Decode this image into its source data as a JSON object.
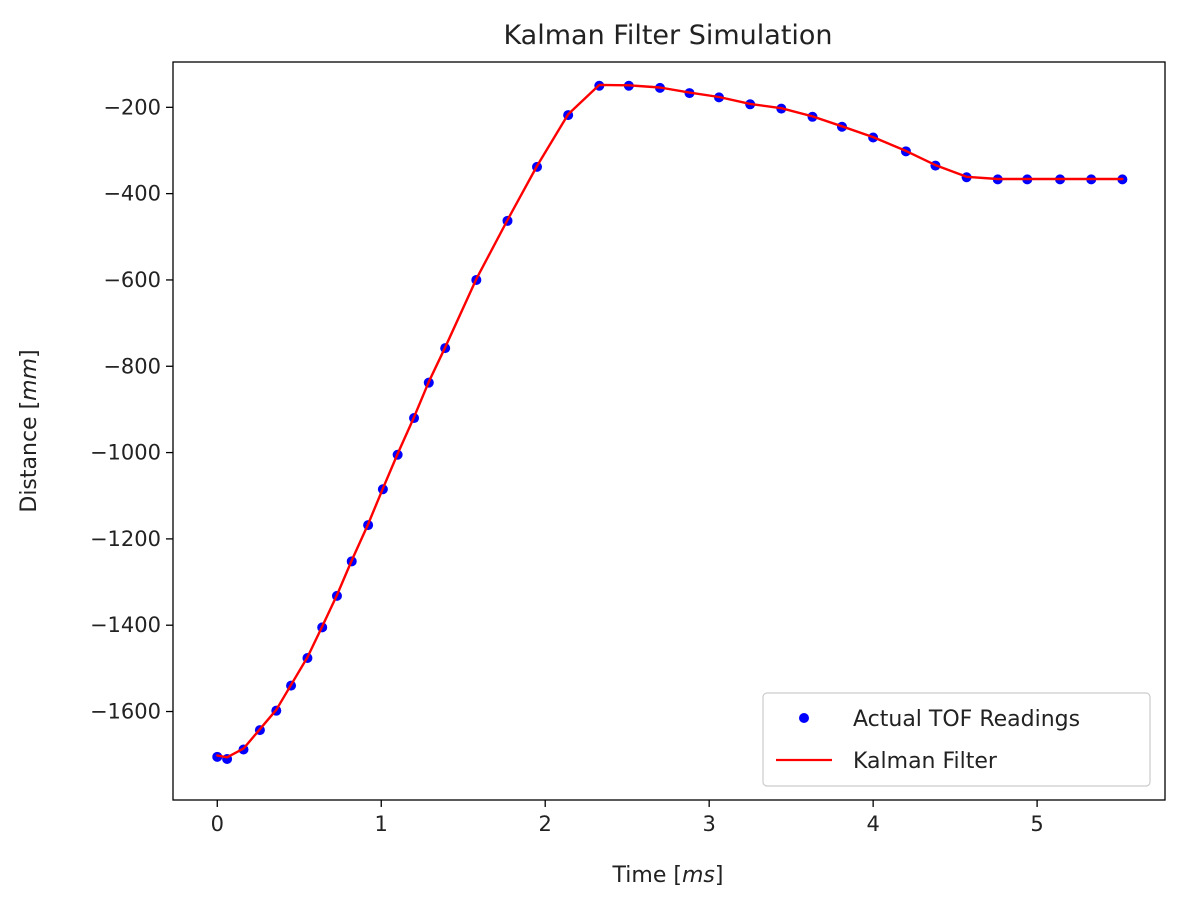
{
  "chart_data": {
    "type": "line",
    "title": "Kalman Filter Simulation",
    "xlabel_prefix": "Time [",
    "xlabel_unit": "ms",
    "xlabel_suffix": "]",
    "ylabel_prefix": "Distance [",
    "ylabel_unit": "mm",
    "ylabel_suffix": "]",
    "xlim": [
      -0.27,
      5.78
    ],
    "ylim": [
      -1805,
      -95
    ],
    "xticks": [
      0,
      1,
      2,
      3,
      4,
      5
    ],
    "yticks": [
      -1600,
      -1400,
      -1200,
      -1000,
      -800,
      -600,
      -400,
      -200
    ],
    "xtick_labels": [
      "0",
      "1",
      "2",
      "3",
      "4",
      "5"
    ],
    "ytick_labels": [
      "−1600",
      "−1400",
      "−1200",
      "−1000",
      "−800",
      "−600",
      "−400",
      "−200"
    ],
    "grid": false,
    "legend_position": "lower-right",
    "series": [
      {
        "name": "Actual TOF Readings",
        "kind": "scatter",
        "color": "#0000ff",
        "x": [
          0.0,
          0.06,
          0.16,
          0.26,
          0.36,
          0.45,
          0.55,
          0.64,
          0.73,
          0.82,
          0.92,
          1.01,
          1.1,
          1.2,
          1.29,
          1.39,
          1.58,
          1.77,
          1.95,
          2.14,
          2.33,
          2.51,
          2.7,
          2.88,
          3.06,
          3.25,
          3.44,
          3.63,
          3.81,
          4.0,
          4.2,
          4.38,
          4.57,
          4.76,
          4.94,
          5.14,
          5.33,
          5.52
        ],
        "y": [
          -1705,
          -1710,
          -1688,
          -1643,
          -1598,
          -1540,
          -1476,
          -1405,
          -1332,
          -1252,
          -1168,
          -1085,
          -1005,
          -920,
          -838,
          -758,
          -600,
          -463,
          -338,
          -218,
          -150,
          -150,
          -155,
          -167,
          -177,
          -193,
          -203,
          -222,
          -245,
          -270,
          -302,
          -335,
          -362,
          -367,
          -367,
          -367,
          -367,
          -367
        ]
      },
      {
        "name": "Kalman Filter",
        "kind": "line",
        "color": "#ff0000",
        "x": [
          0.0,
          0.06,
          0.16,
          0.26,
          0.36,
          0.45,
          0.55,
          0.64,
          0.73,
          0.82,
          0.92,
          1.01,
          1.1,
          1.2,
          1.29,
          1.39,
          1.58,
          1.77,
          1.95,
          2.14,
          2.33,
          2.51,
          2.7,
          2.88,
          3.06,
          3.25,
          3.44,
          3.63,
          3.81,
          4.0,
          4.2,
          4.38,
          4.57,
          4.76,
          4.94,
          5.14,
          5.33,
          5.52
        ],
        "y": [
          -1702,
          -1706,
          -1686,
          -1641,
          -1596,
          -1538,
          -1474,
          -1403,
          -1330,
          -1250,
          -1166,
          -1083,
          -1003,
          -918,
          -836,
          -756,
          -598,
          -461,
          -336,
          -216,
          -148,
          -149,
          -154,
          -166,
          -176,
          -192,
          -202,
          -221,
          -244,
          -269,
          -301,
          -334,
          -361,
          -366,
          -366,
          -366,
          -366,
          -366
        ]
      }
    ]
  }
}
